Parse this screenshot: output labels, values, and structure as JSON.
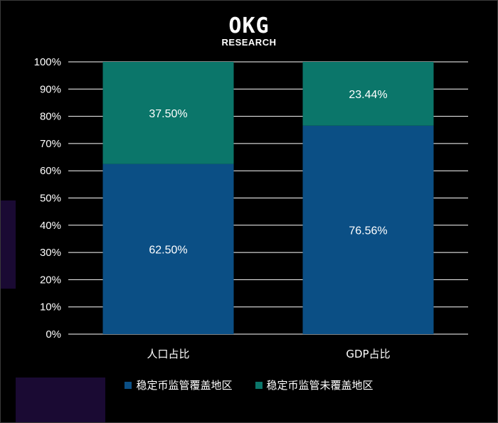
{
  "logo": {
    "mark": "OKG",
    "text": "RESEARCH"
  },
  "chart_data": {
    "type": "bar",
    "stacked": true,
    "percent": true,
    "categories": [
      "人口占比",
      "GDP占比"
    ],
    "series": [
      {
        "name": "稳定币监管覆盖地区",
        "values": [
          62.5,
          76.56
        ],
        "labels": [
          "62.50%",
          "76.56%"
        ],
        "color": "#0b4f85"
      },
      {
        "name": "稳定币监管未覆盖地区",
        "values": [
          37.5,
          23.44
        ],
        "labels": [
          "37.50%",
          "23.44%"
        ],
        "color": "#0b766a"
      }
    ],
    "ylim": [
      0,
      100
    ],
    "yticks": [
      "0%",
      "10%",
      "20%",
      "30%",
      "40%",
      "50%",
      "60%",
      "70%",
      "80%",
      "90%",
      "100%"
    ],
    "grid": true,
    "legend_position": "bottom"
  },
  "colors": {
    "background": "#000000",
    "gridline": "#ffffff",
    "decoration": "#1a0a33"
  }
}
